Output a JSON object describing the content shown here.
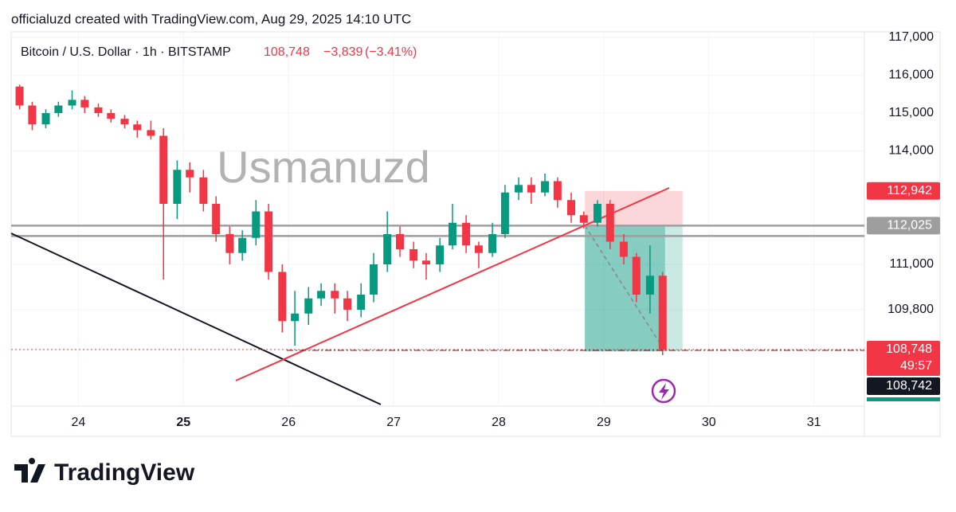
{
  "chart_data": {
    "type": "candlestick",
    "header": "officialuzd created with TradingView.com, Aug 29, 2025 14:10 UTC",
    "legend": {
      "symbol": "Bitcoin / U.S. Dollar · 1h · BITSTAMP",
      "last": "108,748",
      "change": "−3,839",
      "change_pct": "(−3.41%)"
    },
    "watermark": "Usmanuzd",
    "footer_brand": "TradingView",
    "countdown": "49:57",
    "up_color": "#089981",
    "down_color": "#f23645",
    "xlim": [
      23.36,
      31.48
    ],
    "xticks": [
      24,
      25,
      26,
      27,
      28,
      29,
      30,
      31
    ],
    "ylim": [
      107253,
      117147
    ],
    "yticks": [
      {
        "value": 117000,
        "label": "117,000"
      },
      {
        "value": 116000,
        "label": "116,000"
      },
      {
        "value": 115000,
        "label": "115,000"
      },
      {
        "value": 114000,
        "label": "114,000"
      },
      {
        "value": 111000,
        "label": "111,000"
      },
      {
        "value": 109800,
        "label": "109,800"
      }
    ],
    "grid": true,
    "x": [
      23.44,
      23.56,
      23.69,
      23.81,
      23.94,
      24.06,
      24.19,
      24.31,
      24.44,
      24.56,
      24.69,
      24.81,
      24.94,
      25.06,
      25.19,
      25.31,
      25.44,
      25.56,
      25.69,
      25.81,
      25.94,
      26.06,
      26.19,
      26.31,
      26.44,
      26.56,
      26.69,
      26.81,
      26.94,
      27.06,
      27.19,
      27.31,
      27.44,
      27.56,
      27.69,
      27.81,
      27.94,
      28.06,
      28.19,
      28.31,
      28.44,
      28.56,
      28.69,
      28.81,
      28.94,
      29.06,
      29.19,
      29.31,
      29.44,
      29.56
    ],
    "open": [
      115700,
      115200,
      114700,
      115000,
      115200,
      115350,
      115150,
      115000,
      114850,
      114700,
      114550,
      114400,
      112600,
      113500,
      113300,
      112600,
      111800,
      111300,
      111700,
      112400,
      110800,
      109500,
      109700,
      110100,
      110300,
      110100,
      109800,
      110200,
      111000,
      111800,
      111400,
      111100,
      111000,
      111500,
      112100,
      111500,
      111300,
      111800,
      112900,
      113100,
      112900,
      113200,
      112700,
      112300,
      112100,
      112600,
      111600,
      111200,
      110200,
      110700
    ],
    "high": [
      115750,
      115300,
      115100,
      115300,
      115600,
      115450,
      115250,
      115100,
      114950,
      114800,
      114800,
      114600,
      113750,
      113700,
      113500,
      112800,
      112000,
      111900,
      112700,
      112600,
      111000,
      110300,
      110400,
      110500,
      110500,
      110300,
      110500,
      111300,
      112400,
      112000,
      111600,
      111300,
      111700,
      112600,
      112300,
      111600,
      112100,
      113100,
      113300,
      113300,
      113400,
      113300,
      112900,
      112400,
      112700,
      112700,
      111800,
      111300,
      111500,
      110800
    ],
    "low": [
      115100,
      114550,
      114600,
      114900,
      115100,
      115000,
      114900,
      114750,
      114600,
      114350,
      114300,
      110600,
      112200,
      112900,
      112400,
      111600,
      111000,
      111100,
      111500,
      110600,
      109200,
      108850,
      109400,
      109900,
      109700,
      109500,
      109600,
      110000,
      110800,
      111200,
      110900,
      110600,
      110800,
      111400,
      111300,
      110900,
      111200,
      111700,
      112700,
      112600,
      112800,
      112500,
      112100,
      111950,
      112000,
      111400,
      111000,
      110000,
      109700,
      108600
    ],
    "close": [
      115200,
      114700,
      115000,
      115200,
      115350,
      115150,
      115000,
      114850,
      114700,
      114550,
      114400,
      112600,
      113500,
      113300,
      112600,
      111800,
      111300,
      111700,
      112400,
      110800,
      109500,
      109700,
      110100,
      110300,
      110100,
      109800,
      110200,
      111000,
      111800,
      111400,
      111100,
      111000,
      111500,
      112100,
      111500,
      111300,
      111800,
      112900,
      113100,
      112900,
      113200,
      112700,
      112300,
      112100,
      112600,
      111600,
      111200,
      110200,
      110700,
      108748
    ],
    "last_price": {
      "value": 108748,
      "label": "108,748"
    },
    "levels": [
      {
        "value": 112942,
        "label": "112,942",
        "color": "#f23645"
      },
      {
        "value": 112025,
        "label": "112,025",
        "color": "#9e9e9e"
      },
      {
        "value": 108742,
        "label": "108,742",
        "color": "#131722"
      }
    ],
    "horizontal_lines": [
      112025,
      111750
    ],
    "position": {
      "entry": 112025,
      "stop": 112942,
      "target": 108700,
      "start": 28.82,
      "end": 29.75
    }
  }
}
